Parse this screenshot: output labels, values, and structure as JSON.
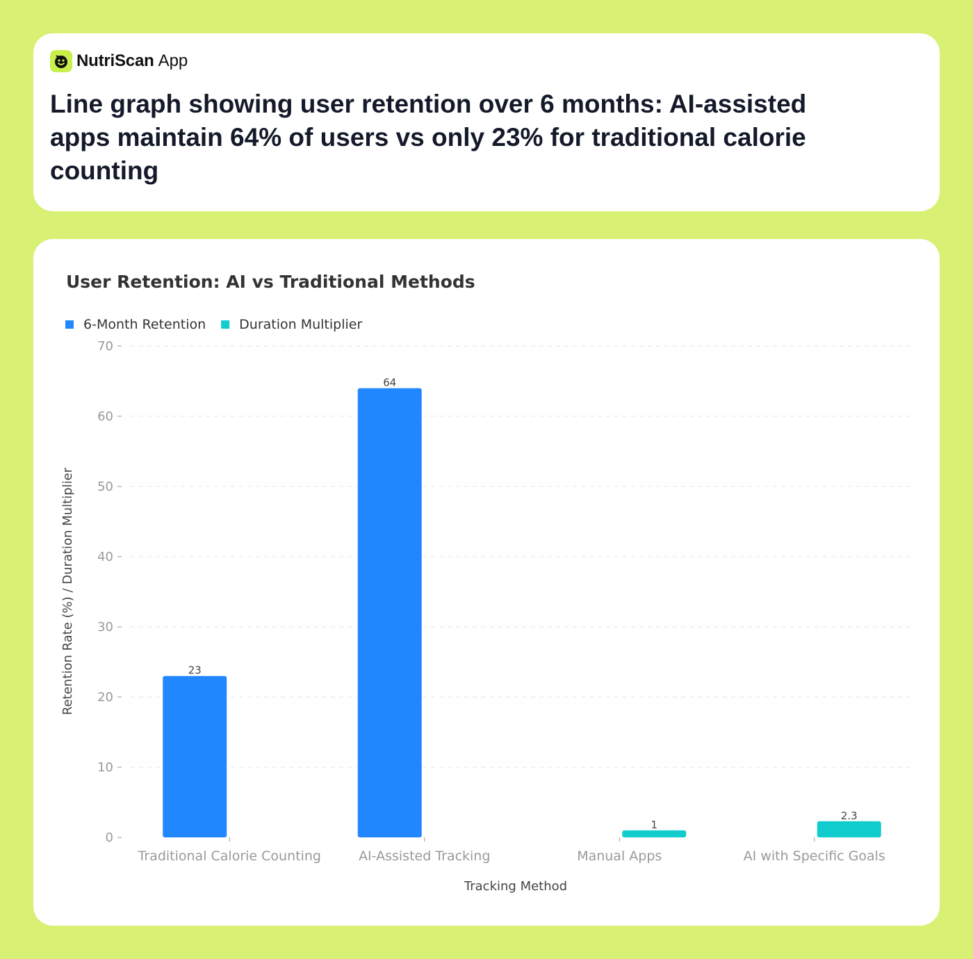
{
  "brand": {
    "name": "NutriScan",
    "suffix": "App",
    "logo_icon": "smiley-leaf-icon",
    "accent": "#c8ef4c"
  },
  "headline": "Line graph showing user retention over 6 months: AI-assisted apps maintain 64% of users vs only 23% for traditional calorie counting",
  "colors": {
    "background": "#d8f074",
    "retention": "#2187ff",
    "multiplier": "#10cccc"
  },
  "chart_data": {
    "type": "bar",
    "title": "User Retention: AI vs Traditional Methods",
    "xlabel": "Tracking Method",
    "ylabel": "Retention Rate (%) / Duration Multiplier",
    "ylim": [
      0,
      70
    ],
    "yticks": [
      0,
      10,
      20,
      30,
      40,
      50,
      60,
      70
    ],
    "grid": true,
    "legend_position": "top-left",
    "categories": [
      "Traditional Calorie Counting",
      "AI-Assisted Tracking",
      "Manual Apps",
      "AI with Specific Goals"
    ],
    "series": [
      {
        "name": "6-Month Retention",
        "color": "#2187ff",
        "values": [
          23,
          64,
          null,
          null
        ]
      },
      {
        "name": "Duration Multiplier",
        "color": "#10cccc",
        "values": [
          null,
          null,
          1,
          2.3
        ]
      }
    ]
  }
}
